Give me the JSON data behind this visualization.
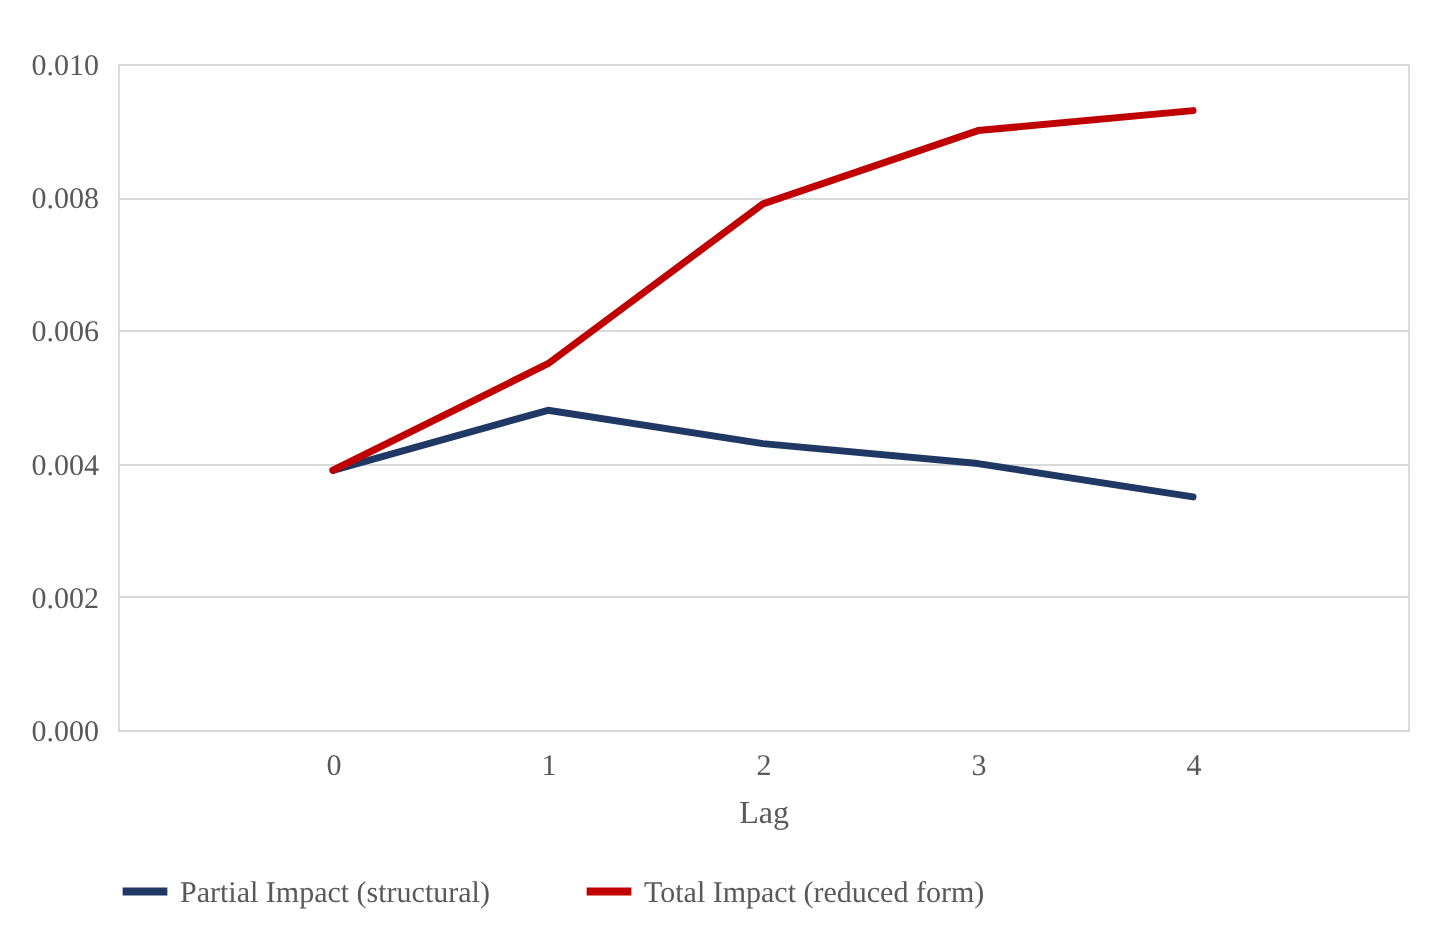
{
  "chart_data": {
    "type": "line",
    "xlabel": "Lag",
    "categories": [
      "0",
      "1",
      "2",
      "3",
      "4"
    ],
    "series": [
      {
        "name": "Partial Impact (structural)",
        "color": "#203864",
        "values": [
          0.0039,
          0.0048,
          0.0043,
          0.004,
          0.0035
        ]
      },
      {
        "name": "Total Impact (reduced form)",
        "color": "#c00000",
        "values": [
          0.0039,
          0.0055,
          0.0079,
          0.009,
          0.0093
        ]
      }
    ],
    "ylim": [
      0,
      0.01
    ],
    "yticks": [
      {
        "value": 0,
        "label": "0.000"
      },
      {
        "value": 0.002,
        "label": "0.002"
      },
      {
        "value": 0.004,
        "label": "0.004"
      },
      {
        "value": 0.006,
        "label": "0.006"
      },
      {
        "value": 0.008,
        "label": "0.008"
      },
      {
        "value": 0.01,
        "label": "0.010"
      }
    ],
    "grid": "y",
    "legend": "bottom",
    "marker": "none",
    "line_style": "solid"
  }
}
